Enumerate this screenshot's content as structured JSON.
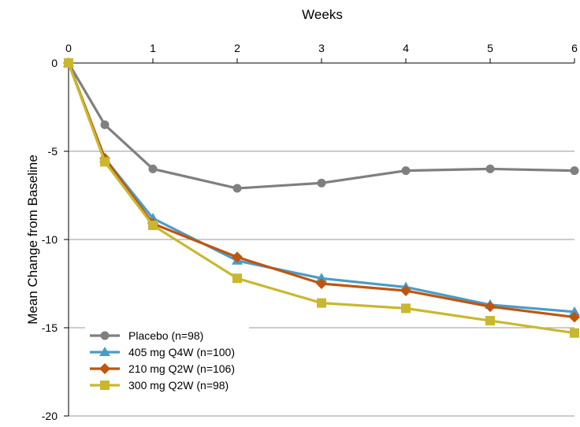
{
  "chart_data": {
    "type": "line",
    "title": "",
    "xlabel": "Weeks",
    "ylabel": "Mean Change from Baseline",
    "x_axis_position": "top",
    "xlim": [
      0,
      6
    ],
    "ylim": [
      -20,
      0
    ],
    "x_ticks": [
      "0",
      "1",
      "2",
      "3",
      "4",
      "5",
      "6"
    ],
    "y_ticks": [
      "0",
      "-5",
      "-10",
      "-15",
      "-20"
    ],
    "grid": "horizontal",
    "legend_position": "bottom-left",
    "x": [
      0,
      0.43,
      1,
      2,
      3,
      4,
      5,
      6
    ],
    "series": [
      {
        "name": "Placebo (n=98)",
        "color": "#7f7f7f",
        "marker": "circle",
        "values": [
          0,
          -3.5,
          -6.0,
          -7.1,
          -6.8,
          -6.1,
          -6.0,
          -6.1
        ]
      },
      {
        "name": "405 mg Q4W (n=100)",
        "color": "#4a9cc8",
        "marker": "triangle",
        "values": [
          0,
          -5.4,
          -8.8,
          -11.2,
          -12.2,
          -12.7,
          -13.7,
          -14.1
        ]
      },
      {
        "name": "210 mg Q2W (n=106)",
        "color": "#c0550f",
        "marker": "diamond",
        "values": [
          0,
          -5.4,
          -9.1,
          -11.0,
          -12.5,
          -12.9,
          -13.8,
          -14.4
        ]
      },
      {
        "name": "300 mg Q2W (n=98)",
        "color": "#c9b82e",
        "marker": "square",
        "values": [
          0,
          -5.6,
          -9.2,
          -12.2,
          -13.6,
          -13.9,
          -14.6,
          -15.3
        ]
      }
    ]
  }
}
